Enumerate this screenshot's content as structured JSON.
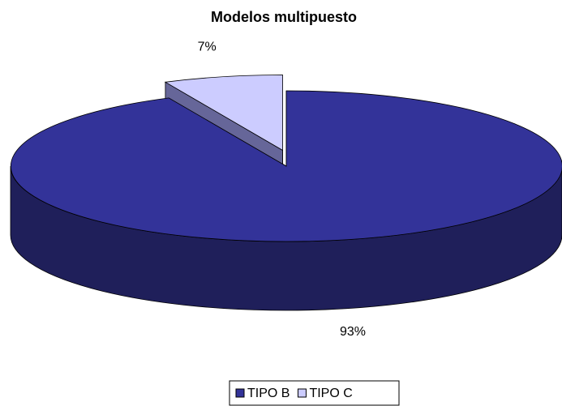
{
  "chart_data": {
    "type": "pie",
    "title": "Modelos multipuesto",
    "categories": [
      "TIPO B",
      "TIPO C"
    ],
    "values": [
      93,
      7
    ],
    "value_labels": [
      "93%",
      "7%"
    ],
    "colors": [
      "#333399",
      "#ccccff"
    ],
    "legend": "bottom"
  }
}
